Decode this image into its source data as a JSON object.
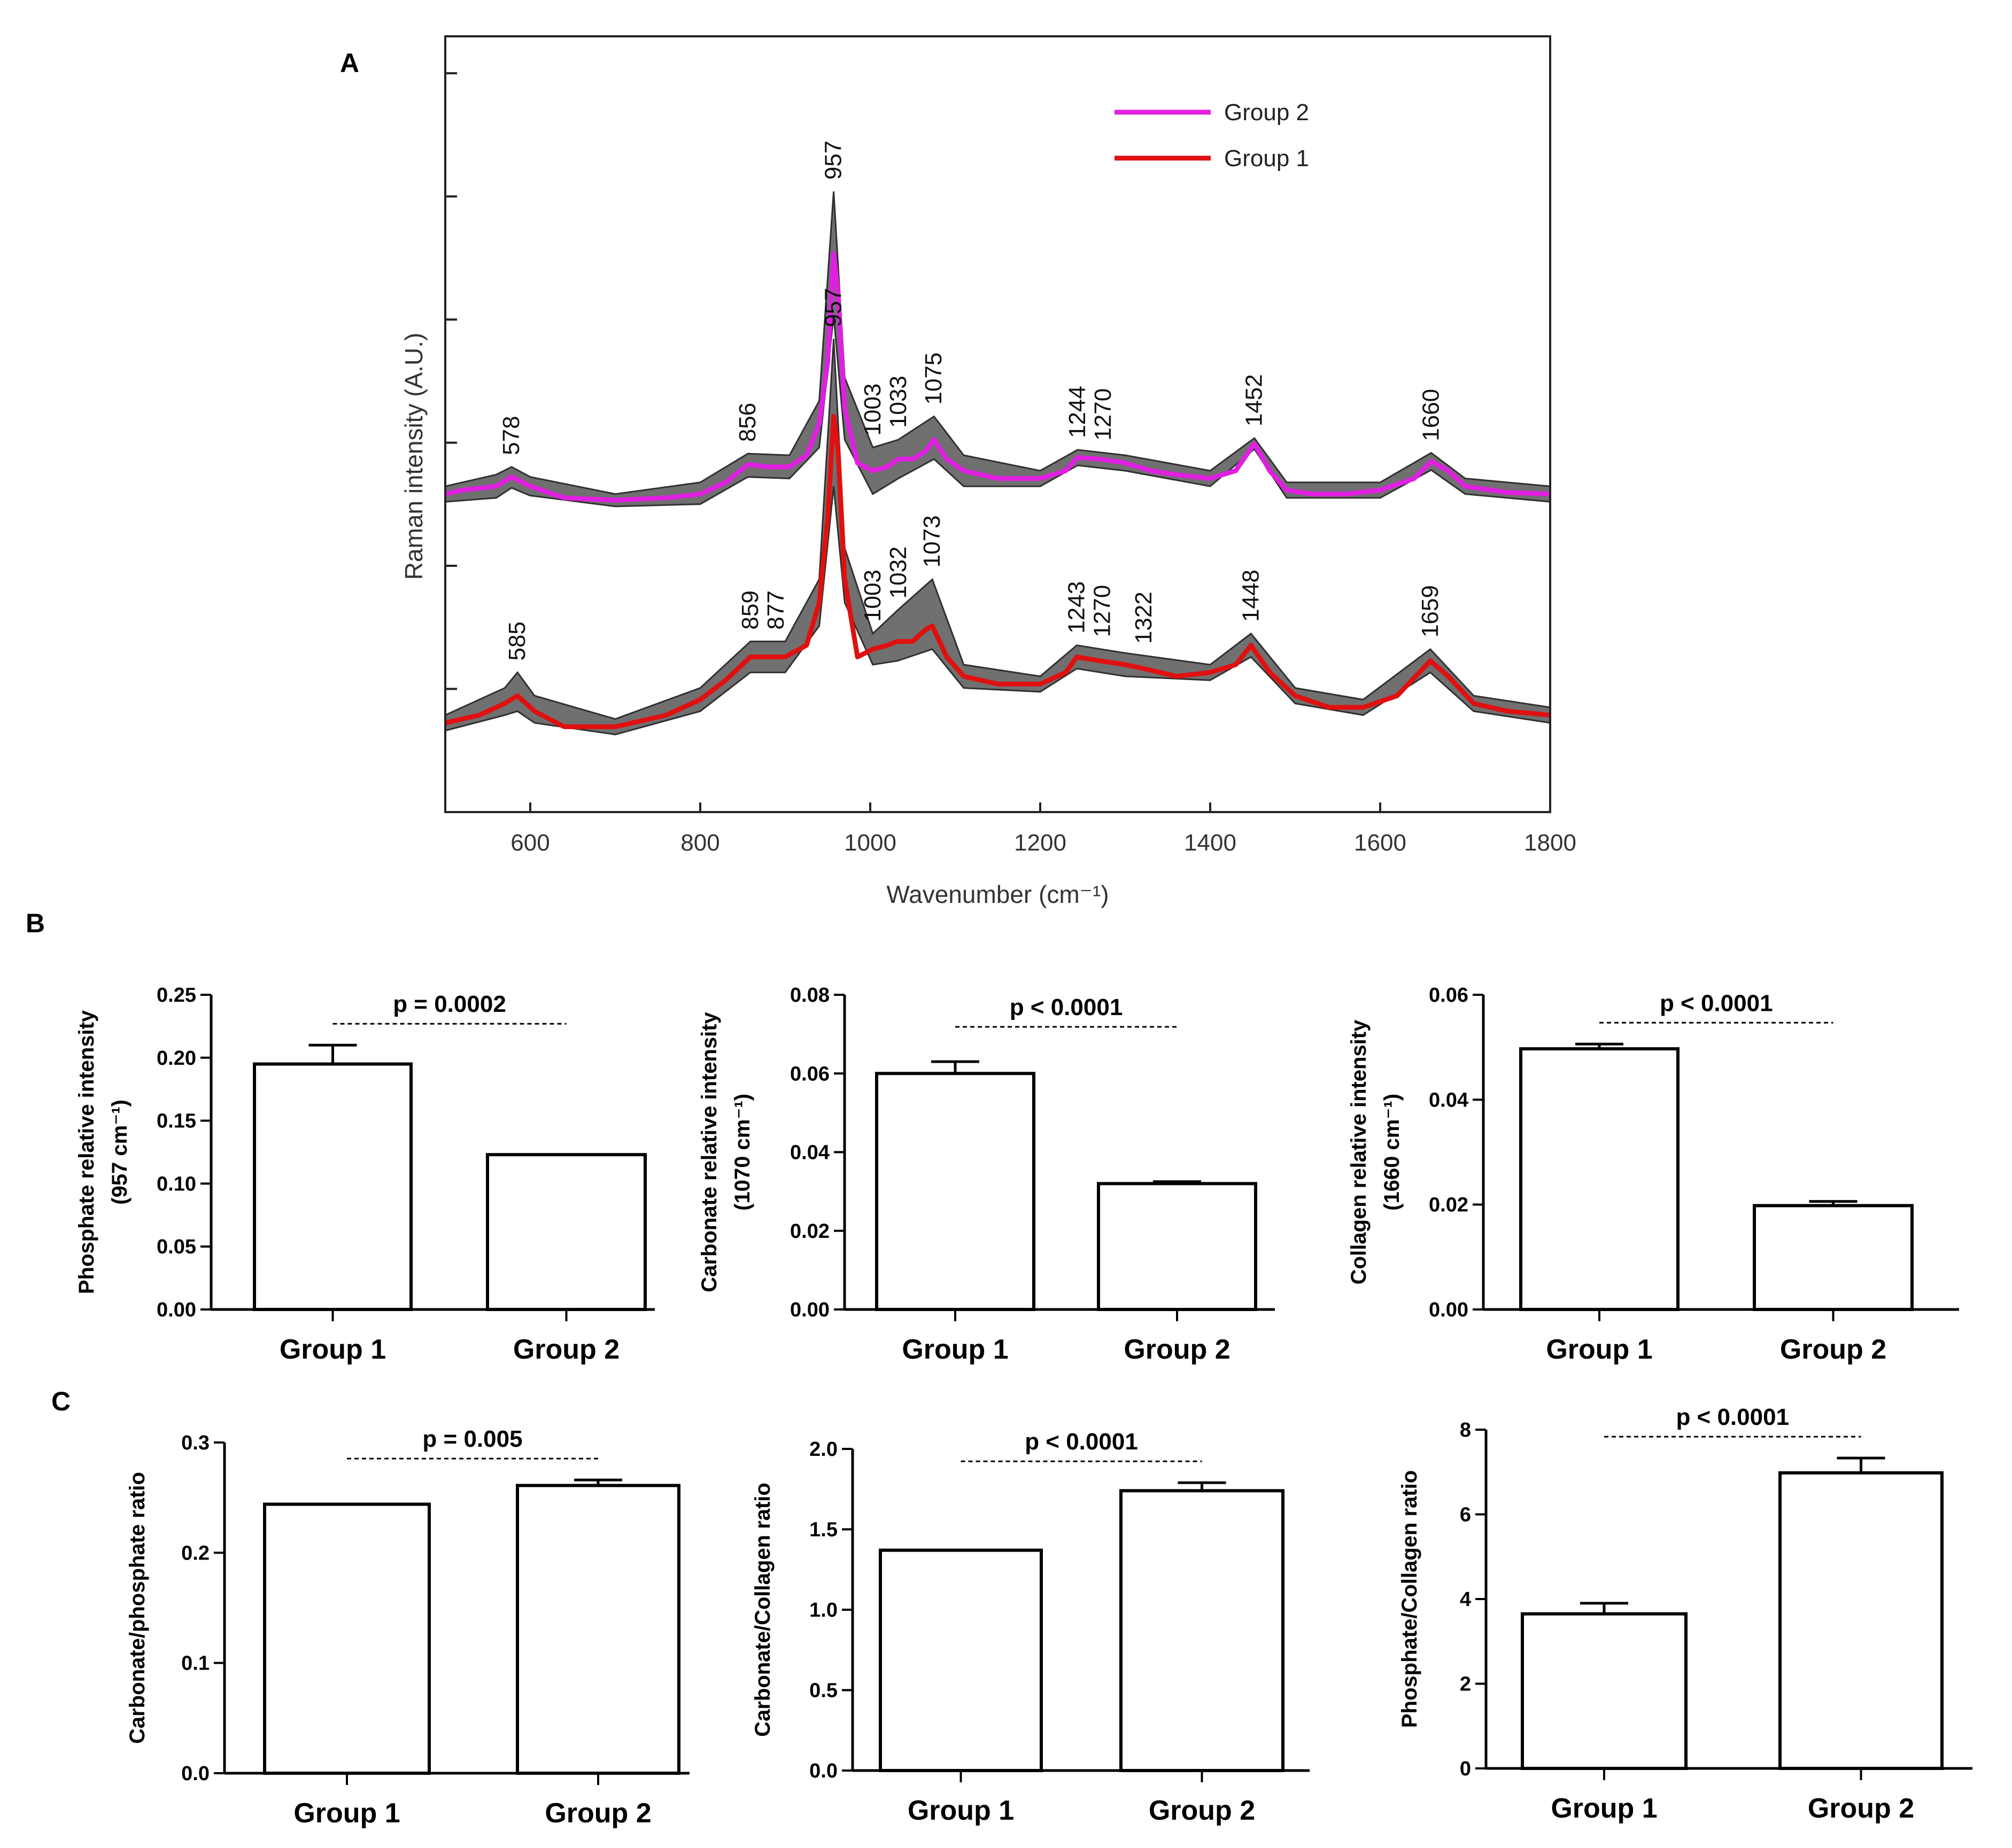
{
  "panels": {
    "a": "A",
    "b": "B",
    "c": "C"
  },
  "chart_data": [
    {
      "id": "spectra",
      "type": "line",
      "title": "",
      "xlabel": "Wavenumber (cm⁻¹)",
      "ylabel": "Raman intensity (A.U.)",
      "xlim": [
        500,
        1800
      ],
      "ylim": [
        0,
        1
      ],
      "xticks": [
        600,
        800,
        1000,
        1200,
        1400,
        1600,
        1800
      ],
      "yticks_count": 6,
      "grid": false,
      "legend_position": "top-right",
      "legend": [
        {
          "name": "Group 2",
          "color": "#e020e0"
        },
        {
          "name": "Group 1",
          "color": "#e01010"
        }
      ],
      "band_color": "#707070",
      "series": [
        {
          "name": "Group 2",
          "color": "#e020e0",
          "peak_labels": [
            "578",
            "856",
            "957",
            "1003",
            "1033",
            "1075",
            "1244",
            "1270",
            "1452",
            "1660"
          ],
          "points": [
            [
              500,
              0.41
            ],
            [
              520,
              0.415
            ],
            [
              560,
              0.42
            ],
            [
              578,
              0.432
            ],
            [
              600,
              0.42
            ],
            [
              640,
              0.405
            ],
            [
              700,
              0.402
            ],
            [
              760,
              0.405
            ],
            [
              800,
              0.41
            ],
            [
              830,
              0.425
            ],
            [
              856,
              0.448
            ],
            [
              880,
              0.445
            ],
            [
              905,
              0.445
            ],
            [
              925,
              0.46
            ],
            [
              940,
              0.5
            ],
            [
              950,
              0.58
            ],
            [
              957,
              0.72
            ],
            [
              962,
              0.67
            ],
            [
              970,
              0.52
            ],
            [
              985,
              0.45
            ],
            [
              1003,
              0.44
            ],
            [
              1020,
              0.445
            ],
            [
              1033,
              0.455
            ],
            [
              1050,
              0.455
            ],
            [
              1065,
              0.465
            ],
            [
              1075,
              0.48
            ],
            [
              1090,
              0.455
            ],
            [
              1110,
              0.44
            ],
            [
              1150,
              0.43
            ],
            [
              1200,
              0.43
            ],
            [
              1230,
              0.44
            ],
            [
              1244,
              0.457
            ],
            [
              1270,
              0.455
            ],
            [
              1300,
              0.45
            ],
            [
              1330,
              0.44
            ],
            [
              1360,
              0.435
            ],
            [
              1400,
              0.43
            ],
            [
              1430,
              0.44
            ],
            [
              1452,
              0.475
            ],
            [
              1470,
              0.44
            ],
            [
              1490,
              0.415
            ],
            [
              1520,
              0.41
            ],
            [
              1560,
              0.41
            ],
            [
              1600,
              0.415
            ],
            [
              1640,
              0.43
            ],
            [
              1660,
              0.452
            ],
            [
              1680,
              0.44
            ],
            [
              1700,
              0.42
            ],
            [
              1750,
              0.412
            ],
            [
              1800,
              0.41
            ]
          ],
          "band_upper": [
            [
              500,
              0.42
            ],
            [
              560,
              0.435
            ],
            [
              578,
              0.445
            ],
            [
              600,
              0.432
            ],
            [
              700,
              0.41
            ],
            [
              800,
              0.425
            ],
            [
              856,
              0.462
            ],
            [
              905,
              0.46
            ],
            [
              940,
              0.53
            ],
            [
              957,
              0.8
            ],
            [
              970,
              0.56
            ],
            [
              1003,
              0.47
            ],
            [
              1033,
              0.48
            ],
            [
              1075,
              0.51
            ],
            [
              1110,
              0.46
            ],
            [
              1200,
              0.44
            ],
            [
              1244,
              0.467
            ],
            [
              1300,
              0.46
            ],
            [
              1400,
              0.44
            ],
            [
              1452,
              0.482
            ],
            [
              1490,
              0.425
            ],
            [
              1600,
              0.425
            ],
            [
              1660,
              0.463
            ],
            [
              1700,
              0.43
            ],
            [
              1800,
              0.42
            ]
          ],
          "band_lower": [
            [
              500,
              0.4
            ],
            [
              560,
              0.405
            ],
            [
              578,
              0.418
            ],
            [
              600,
              0.408
            ],
            [
              700,
              0.394
            ],
            [
              800,
              0.397
            ],
            [
              856,
              0.432
            ],
            [
              905,
              0.43
            ],
            [
              940,
              0.47
            ],
            [
              957,
              0.64
            ],
            [
              970,
              0.48
            ],
            [
              1003,
              0.41
            ],
            [
              1033,
              0.43
            ],
            [
              1075,
              0.455
            ],
            [
              1110,
              0.42
            ],
            [
              1200,
              0.42
            ],
            [
              1244,
              0.447
            ],
            [
              1300,
              0.44
            ],
            [
              1400,
              0.42
            ],
            [
              1452,
              0.468
            ],
            [
              1490,
              0.405
            ],
            [
              1600,
              0.405
            ],
            [
              1660,
              0.441
            ],
            [
              1700,
              0.41
            ],
            [
              1800,
              0.4
            ]
          ]
        },
        {
          "name": "Group 1",
          "color": "#e01010",
          "peak_labels": [
            "585",
            "859",
            "877",
            "957",
            "1003",
            "1032",
            "1073",
            "1243",
            "1270",
            "1322",
            "1448",
            "1659"
          ],
          "points": [
            [
              500,
              0.115
            ],
            [
              540,
              0.125
            ],
            [
              570,
              0.14
            ],
            [
              585,
              0.15
            ],
            [
              605,
              0.13
            ],
            [
              640,
              0.11
            ],
            [
              700,
              0.11
            ],
            [
              760,
              0.125
            ],
            [
              800,
              0.145
            ],
            [
              830,
              0.17
            ],
            [
              859,
              0.2
            ],
            [
              877,
              0.2
            ],
            [
              900,
              0.2
            ],
            [
              925,
              0.215
            ],
            [
              940,
              0.27
            ],
            [
              950,
              0.38
            ],
            [
              957,
              0.51
            ],
            [
              962,
              0.47
            ],
            [
              970,
              0.3
            ],
            [
              985,
              0.2
            ],
            [
              1003,
              0.21
            ],
            [
              1020,
              0.215
            ],
            [
              1032,
              0.22
            ],
            [
              1050,
              0.22
            ],
            [
              1065,
              0.235
            ],
            [
              1073,
              0.24
            ],
            [
              1090,
              0.2
            ],
            [
              1110,
              0.175
            ],
            [
              1150,
              0.165
            ],
            [
              1200,
              0.165
            ],
            [
              1230,
              0.18
            ],
            [
              1243,
              0.2
            ],
            [
              1270,
              0.195
            ],
            [
              1300,
              0.19
            ],
            [
              1322,
              0.185
            ],
            [
              1360,
              0.175
            ],
            [
              1400,
              0.18
            ],
            [
              1430,
              0.19
            ],
            [
              1448,
              0.215
            ],
            [
              1470,
              0.18
            ],
            [
              1500,
              0.15
            ],
            [
              1540,
              0.135
            ],
            [
              1580,
              0.135
            ],
            [
              1620,
              0.15
            ],
            [
              1659,
              0.195
            ],
            [
              1680,
              0.175
            ],
            [
              1710,
              0.14
            ],
            [
              1750,
              0.13
            ],
            [
              1800,
              0.125
            ]
          ],
          "band_upper": [
            [
              500,
              0.125
            ],
            [
              570,
              0.16
            ],
            [
              585,
              0.18
            ],
            [
              605,
              0.15
            ],
            [
              700,
              0.12
            ],
            [
              800,
              0.16
            ],
            [
              859,
              0.22
            ],
            [
              900,
              0.22
            ],
            [
              940,
              0.3
            ],
            [
              957,
              0.61
            ],
            [
              970,
              0.34
            ],
            [
              1003,
              0.23
            ],
            [
              1032,
              0.26
            ],
            [
              1073,
              0.3
            ],
            [
              1110,
              0.19
            ],
            [
              1200,
              0.175
            ],
            [
              1243,
              0.215
            ],
            [
              1300,
              0.205
            ],
            [
              1400,
              0.19
            ],
            [
              1448,
              0.23
            ],
            [
              1500,
              0.16
            ],
            [
              1580,
              0.145
            ],
            [
              1659,
              0.21
            ],
            [
              1710,
              0.15
            ],
            [
              1800,
              0.135
            ]
          ],
          "band_lower": [
            [
              500,
              0.105
            ],
            [
              570,
              0.125
            ],
            [
              585,
              0.13
            ],
            [
              605,
              0.115
            ],
            [
              700,
              0.1
            ],
            [
              800,
              0.13
            ],
            [
              859,
              0.18
            ],
            [
              900,
              0.18
            ],
            [
              940,
              0.24
            ],
            [
              957,
              0.42
            ],
            [
              970,
              0.27
            ],
            [
              1003,
              0.19
            ],
            [
              1032,
              0.195
            ],
            [
              1073,
              0.21
            ],
            [
              1110,
              0.16
            ],
            [
              1200,
              0.155
            ],
            [
              1243,
              0.185
            ],
            [
              1300,
              0.175
            ],
            [
              1400,
              0.17
            ],
            [
              1448,
              0.2
            ],
            [
              1500,
              0.14
            ],
            [
              1580,
              0.125
            ],
            [
              1659,
              0.18
            ],
            [
              1710,
              0.13
            ],
            [
              1800,
              0.115
            ]
          ]
        }
      ]
    },
    {
      "id": "phosphate",
      "type": "bar",
      "categories": [
        "Group 1",
        "Group 2"
      ],
      "values": [
        0.195,
        0.123
      ],
      "errors": [
        0.015,
        0.0
      ],
      "ylim": [
        0,
        0.25
      ],
      "yticks": [
        "0.00",
        "0.05",
        "0.10",
        "0.15",
        "0.20",
        "0.25"
      ],
      "ylabel": [
        "Phosphate relative intensity",
        "(957 cm⁻¹)"
      ],
      "pvalue": "p = 0.0002"
    },
    {
      "id": "carbonate",
      "type": "bar",
      "categories": [
        "Group 1",
        "Group 2"
      ],
      "values": [
        0.06,
        0.032
      ],
      "errors": [
        0.003,
        0.0005
      ],
      "ylim": [
        0,
        0.08
      ],
      "yticks": [
        "0.00",
        "0.02",
        "0.04",
        "0.06",
        "0.08"
      ],
      "ylabel": [
        "Carbonate relative intensity",
        "(1070 cm⁻¹)"
      ],
      "pvalue": "p < 0.0001"
    },
    {
      "id": "collagen",
      "type": "bar",
      "categories": [
        "Group 1",
        "Group 2"
      ],
      "values": [
        0.0497,
        0.0198
      ],
      "errors": [
        0.0009,
        0.0008
      ],
      "ylim": [
        0,
        0.06
      ],
      "yticks": [
        "0.00",
        "0.02",
        "0.04",
        "0.06"
      ],
      "ylabel": [
        "Collagen relative intensity",
        "(1660 cm⁻¹)"
      ],
      "pvalue": "p < 0.0001"
    },
    {
      "id": "carb_phos",
      "type": "bar",
      "categories": [
        "Group 1",
        "Group 2"
      ],
      "values": [
        0.244,
        0.261
      ],
      "errors": [
        0.0,
        0.005
      ],
      "ylim": [
        0,
        0.3
      ],
      "yticks": [
        "0.0",
        "0.1",
        "0.2",
        "0.3"
      ],
      "ylabel": [
        "Carbonate/phosphate ratio"
      ],
      "pvalue": "p = 0.005"
    },
    {
      "id": "carb_coll",
      "type": "bar",
      "categories": [
        "Group 1",
        "Group 2"
      ],
      "values": [
        1.37,
        1.74
      ],
      "errors": [
        0.0,
        0.05
      ],
      "ylim": [
        0,
        2.0
      ],
      "yticks": [
        "0.0",
        "0.5",
        "1.0",
        "1.5",
        "2.0"
      ],
      "ylabel": [
        "Carbonate/Collagen ratio"
      ],
      "pvalue": "p < 0.0001"
    },
    {
      "id": "phos_coll",
      "type": "bar",
      "categories": [
        "Group 1",
        "Group 2"
      ],
      "values": [
        3.65,
        6.98
      ],
      "errors": [
        0.25,
        0.35
      ],
      "ylim": [
        0,
        8
      ],
      "yticks": [
        "0",
        "2",
        "4",
        "6",
        "8"
      ],
      "ylabel": [
        "Phosphate/Collagen ratio"
      ],
      "pvalue": "p < 0.0001"
    }
  ]
}
